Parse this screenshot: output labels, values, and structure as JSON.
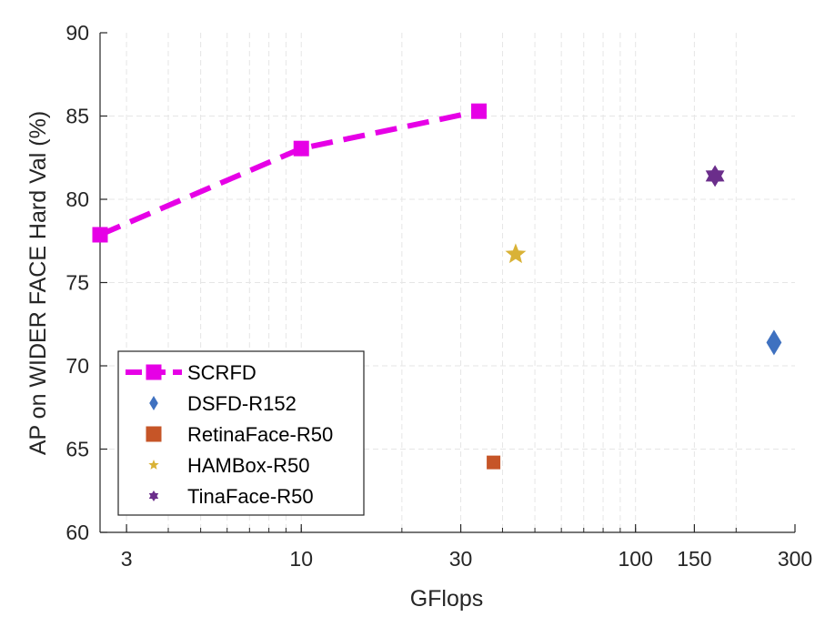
{
  "chart_data": {
    "type": "scatter",
    "title": "",
    "xlabel": "GFlops",
    "ylabel": "AP on WIDER FACE Hard Val (%)",
    "xscale": "log",
    "xlim": [
      2.5,
      300
    ],
    "ylim": [
      60,
      90
    ],
    "grid": true,
    "legend_position": "bottom-left",
    "x_ticks": [
      {
        "value": 3,
        "label": "3"
      },
      {
        "value": 10,
        "label": "10"
      },
      {
        "value": 30,
        "label": "30"
      },
      {
        "value": 100,
        "label": "100"
      },
      {
        "value": 150,
        "label": "150"
      },
      {
        "value": 300,
        "label": "300"
      }
    ],
    "y_ticks": [
      {
        "value": 60,
        "label": "60"
      },
      {
        "value": 65,
        "label": "65"
      },
      {
        "value": 70,
        "label": "70"
      },
      {
        "value": 75,
        "label": "75"
      },
      {
        "value": 80,
        "label": "80"
      },
      {
        "value": 85,
        "label": "85"
      },
      {
        "value": 90,
        "label": "90"
      }
    ],
    "series": [
      {
        "name": "SCRFD",
        "marker": "square",
        "line": "dashed",
        "color": "#e600e6",
        "points": [
          {
            "x": 2.5,
            "y": 77.87
          },
          {
            "x": 10,
            "y": 83.05
          },
          {
            "x": 34,
            "y": 85.29
          }
        ]
      },
      {
        "name": "DSFD-R152",
        "marker": "diamond",
        "line": "none",
        "color": "#3f71c0",
        "points": [
          {
            "x": 259.6,
            "y": 71.4
          }
        ]
      },
      {
        "name": "RetinaFace-R50",
        "marker": "square",
        "line": "none",
        "color": "#c65527",
        "points": [
          {
            "x": 37.6,
            "y": 64.2
          }
        ]
      },
      {
        "name": "HAMBox-R50",
        "marker": "star5",
        "line": "none",
        "color": "#d9b236",
        "points": [
          {
            "x": 43.8,
            "y": 76.7
          }
        ]
      },
      {
        "name": "TinaFace-R50",
        "marker": "star6",
        "line": "none",
        "color": "#6b2e8b",
        "points": [
          {
            "x": 172.9,
            "y": 81.4
          }
        ]
      }
    ]
  }
}
